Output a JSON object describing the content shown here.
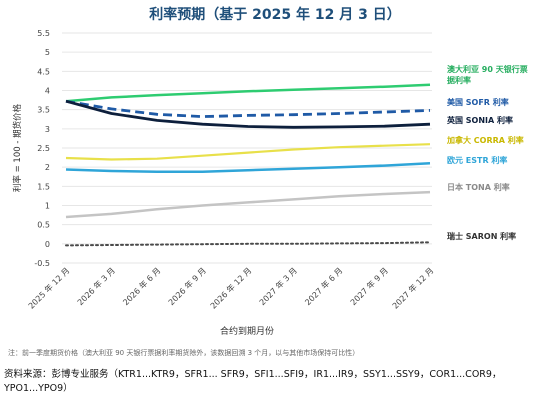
{
  "title": "利率预期（基于 2025 年 12 月 3 日）",
  "note": "注：前一季度期货价格（澳大利亚 90 天银行票据利率期货除外，该数据回溯 3 个月，以与其他市场保持可比性）",
  "source": "资料来源：彭博专业服务（KTR1...KTR9，SFR1... SFR9，SFI1...SFI9，IR1...IR9，SSY1...SSY9，COR1...COR9，YPO1...YPO9）",
  "colors": {
    "aud": "#2ecc71",
    "sofr": "#1f5aa6",
    "sonia": "#0d1f3c",
    "corra": "#e8e04a",
    "estr": "#2fa5d8",
    "tona": "#c4c4c4",
    "saron": "#4a4a4a",
    "grid": "#e6e6e6",
    "axis_text": "#444444"
  },
  "chart_data": {
    "type": "line",
    "title": "利率预期（基于 2025 年 12 月 3 日）",
    "xlabel": "合约到期月份",
    "ylabel": "利率 = 100 - 期货价格",
    "categories": [
      "2025 年 12 月",
      "2026 年 3 月",
      "2026 年 6 月",
      "2026 年 9 月",
      "2026 年 12 月",
      "2027 年 3 月",
      "2027 年 6 月",
      "2027 年 9 月",
      "2027 年 12 月"
    ],
    "yticks": [
      "-0.5",
      "0",
      "0.5",
      "1",
      "1.5",
      "2",
      "2.5",
      "3",
      "3.5",
      "4",
      "4.5",
      "5",
      "5.5"
    ],
    "ylim": [
      -0.5,
      5.5
    ],
    "grid": true,
    "legend": "inline-right",
    "series": [
      {
        "name": "澳大利亚 90 天银行票据利率",
        "key": "aud",
        "dash": "solid",
        "values": [
          3.72,
          3.82,
          3.88,
          3.93,
          3.98,
          4.02,
          4.06,
          4.1,
          4.15
        ]
      },
      {
        "name": "美国 SOFR 利率",
        "key": "sofr",
        "dash": "dashed",
        "values": [
          3.72,
          3.52,
          3.38,
          3.32,
          3.35,
          3.37,
          3.4,
          3.44,
          3.48
        ]
      },
      {
        "name": "英国 SONIA 利率",
        "key": "sonia",
        "dash": "solid",
        "values": [
          3.72,
          3.4,
          3.22,
          3.12,
          3.06,
          3.04,
          3.05,
          3.07,
          3.12
        ]
      },
      {
        "name": "加拿大 CORRA 利率",
        "key": "corra",
        "dash": "solid",
        "values": [
          2.24,
          2.2,
          2.22,
          2.3,
          2.38,
          2.46,
          2.52,
          2.56,
          2.6
        ]
      },
      {
        "name": "欧元 ESTR 利率",
        "key": "estr",
        "dash": "solid",
        "values": [
          1.94,
          1.9,
          1.88,
          1.88,
          1.92,
          1.96,
          2.0,
          2.04,
          2.1
        ]
      },
      {
        "name": "日本 TONA 利率",
        "key": "tona",
        "dash": "solid",
        "values": [
          0.7,
          0.78,
          0.9,
          1.0,
          1.08,
          1.16,
          1.24,
          1.3,
          1.35
        ]
      },
      {
        "name": "瑞士 SARON 利率",
        "key": "saron",
        "dash": "dotted",
        "values": [
          -0.04,
          -0.03,
          -0.02,
          -0.01,
          0.0,
          0.0,
          0.01,
          0.02,
          0.04
        ]
      }
    ]
  }
}
